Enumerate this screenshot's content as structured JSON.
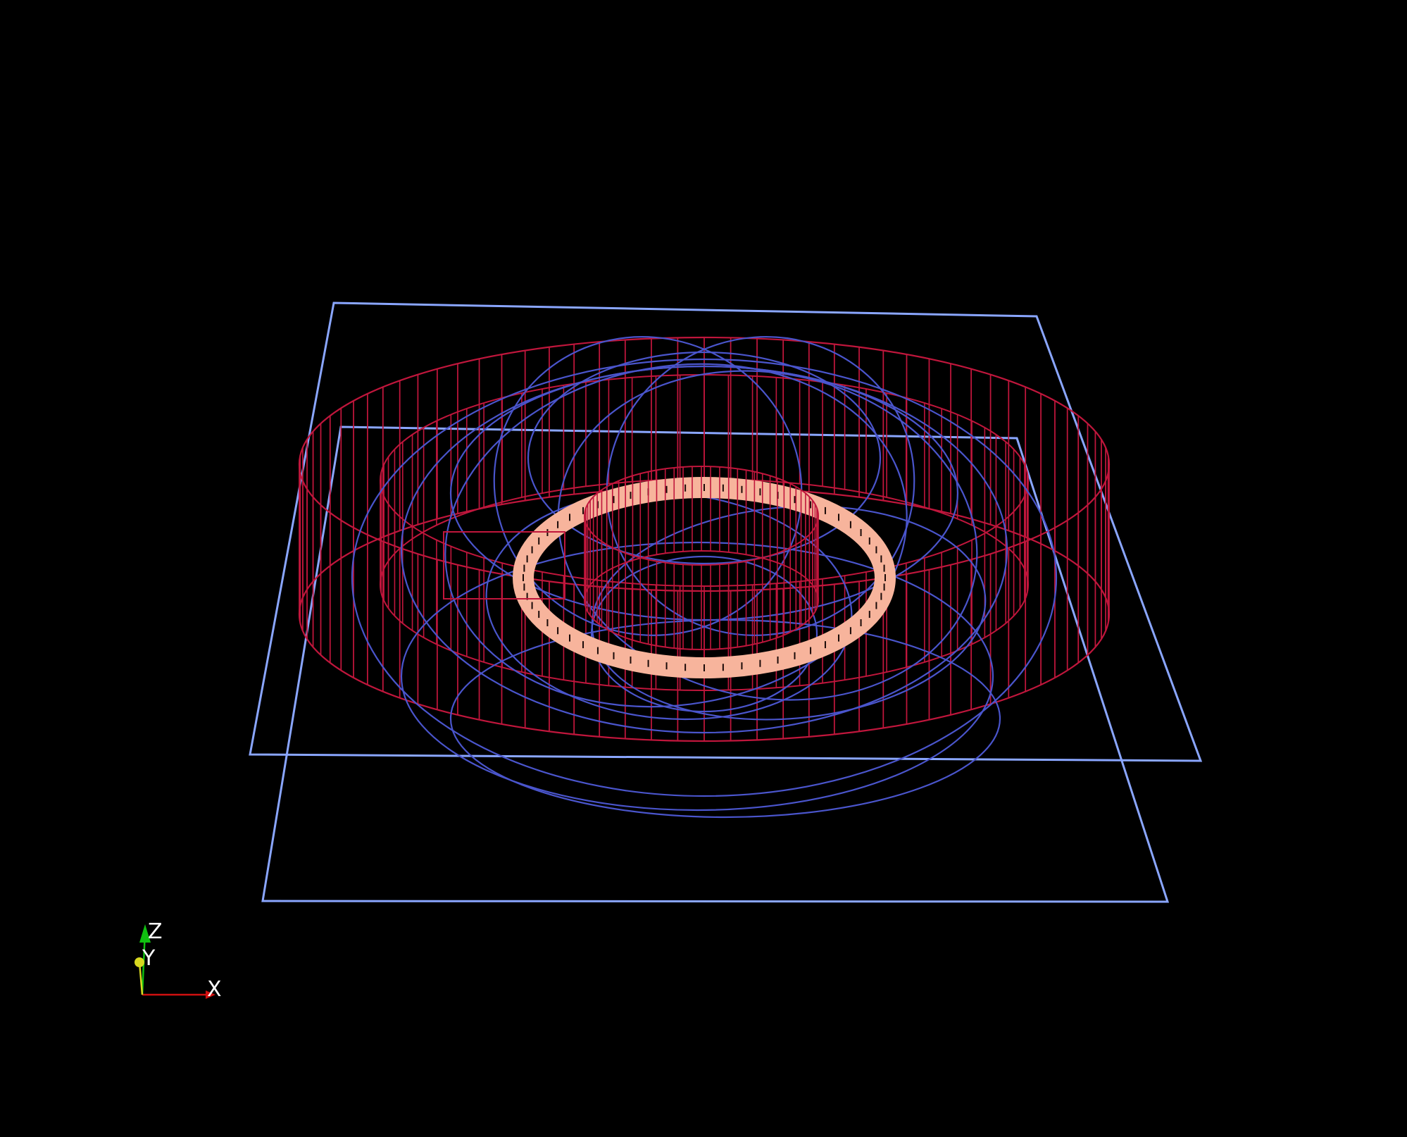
{
  "viewport": {
    "background": "#000000"
  },
  "colors": {
    "plane": "#8aa6ff",
    "cylinder_wireframe": "#c0163c",
    "field_lines": "#4a55cc",
    "ring": "#f7b49c",
    "ring_tick": "#1a0a08",
    "axis_x": "#d01010",
    "axis_y": "#d8d820",
    "axis_z": "#10c010"
  },
  "orientation_axes": {
    "x_label": "X",
    "y_label": "Y",
    "z_label": "Z"
  }
}
